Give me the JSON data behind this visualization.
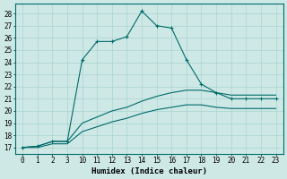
{
  "xlabel": "Humidex (Indice chaleur)",
  "ylabel": "",
  "bg_color": "#cde8e5",
  "line_color": "#006b6b",
  "grid_color": "#aad4d0",
  "ylim": [
    16.5,
    28.8
  ],
  "yticks": [
    17,
    18,
    19,
    20,
    21,
    22,
    23,
    24,
    25,
    26,
    27,
    28
  ],
  "xlabels": [
    "0",
    "1",
    "2",
    "3",
    "10",
    "11",
    "12",
    "13",
    "14",
    "15",
    "16",
    "17",
    "18",
    "19",
    "20",
    "21",
    "22",
    "23"
  ],
  "series": [
    {
      "xpos": [
        0,
        1,
        2,
        3,
        4,
        5,
        6,
        7,
        8,
        9,
        10,
        11,
        12,
        13,
        14,
        15,
        16,
        17
      ],
      "y": [
        17.0,
        17.1,
        17.5,
        17.5,
        24.2,
        25.7,
        25.7,
        26.1,
        28.2,
        27.0,
        26.8,
        24.2,
        22.2,
        21.5,
        21.0,
        21.0,
        21.0,
        21.0
      ],
      "marker": "+"
    },
    {
      "xpos": [
        0,
        1,
        2,
        3,
        4,
        5,
        6,
        7,
        8,
        9,
        10,
        11,
        12,
        13,
        14,
        15,
        16,
        17
      ],
      "y": [
        17.0,
        17.1,
        17.5,
        17.5,
        19.0,
        19.5,
        20.0,
        20.3,
        20.8,
        21.2,
        21.5,
        21.7,
        21.7,
        21.5,
        21.3,
        21.3,
        21.3,
        21.3
      ],
      "marker": null
    },
    {
      "xpos": [
        0,
        1,
        2,
        3,
        4,
        5,
        6,
        7,
        8,
        9,
        10,
        11,
        12,
        13,
        14,
        15,
        16,
        17
      ],
      "y": [
        17.0,
        17.0,
        17.3,
        17.3,
        18.3,
        18.7,
        19.1,
        19.4,
        19.8,
        20.1,
        20.3,
        20.5,
        20.5,
        20.3,
        20.2,
        20.2,
        20.2,
        20.2
      ],
      "marker": null
    }
  ]
}
